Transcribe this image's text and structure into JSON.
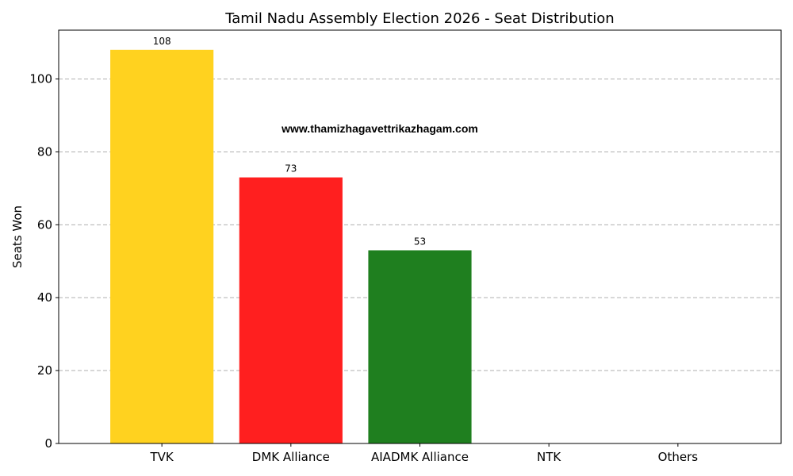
{
  "chart_data": {
    "type": "bar",
    "title": "Tamil Nadu Assembly Election 2026 - Seat Distribution",
    "xlabel": "",
    "ylabel": "Seats Won",
    "categories": [
      "TVK",
      "DMK Alliance",
      "AIADMK Alliance",
      "NTK",
      "Others"
    ],
    "values": [
      108,
      73,
      53,
      0,
      0
    ],
    "data_labels": [
      "108",
      "73",
      "53",
      "",
      ""
    ],
    "colors": [
      "#FFD21F",
      "#FF1F1F",
      "#1F7F1F",
      "#1F1FFF",
      "#808080"
    ],
    "ylim": [
      0,
      113.4
    ],
    "yticks": [
      0,
      20,
      40,
      60,
      80,
      100
    ],
    "grid": true,
    "watermark": "www.thamizhagavettrikazhagam.com"
  }
}
